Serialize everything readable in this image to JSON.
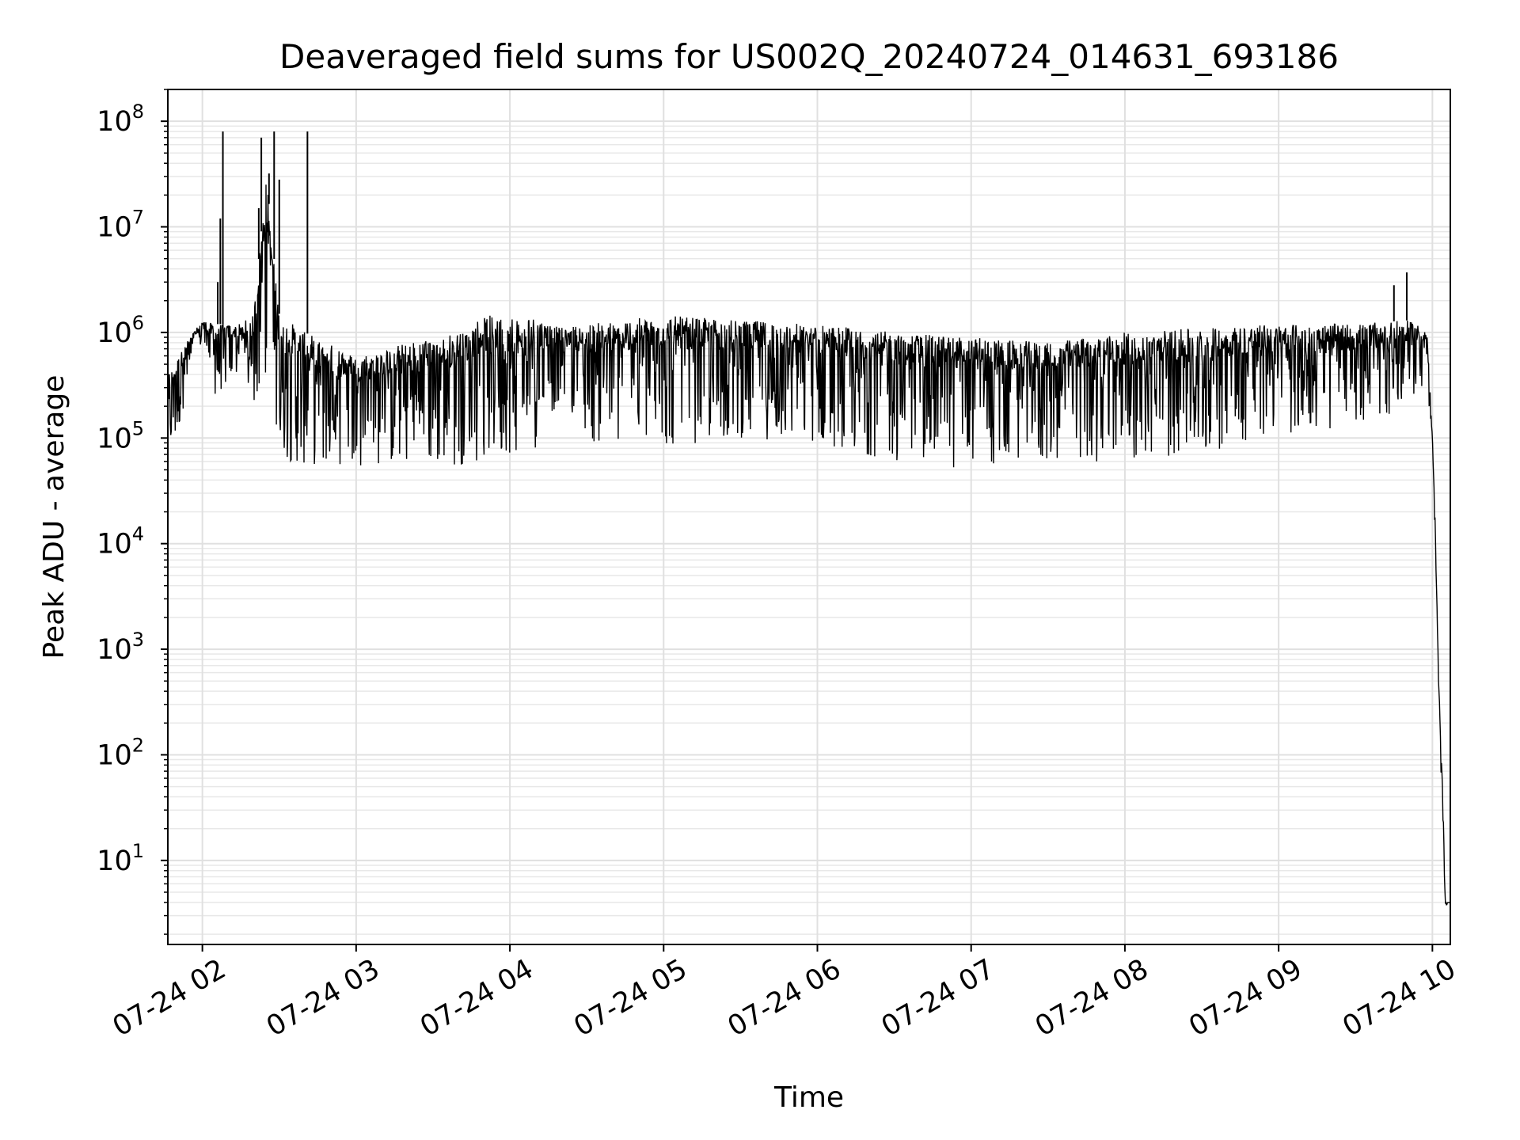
{
  "chart_data": {
    "type": "line",
    "title": "Deaveraged field sums for US002Q_20240724_014631_693186",
    "xlabel": "Time",
    "ylabel": "Peak ADU - average",
    "yscale": "log",
    "ylim": [
      1.6,
      200000000
    ],
    "xlim": [
      "2024-07-24 01:46:31",
      "2024-07-24 10:07:00"
    ],
    "grid": true,
    "x_ticks": [
      {
        "time": "2024-07-24 02:00",
        "label": "07-24 02"
      },
      {
        "time": "2024-07-24 03:00",
        "label": "07-24 03"
      },
      {
        "time": "2024-07-24 04:00",
        "label": "07-24 04"
      },
      {
        "time": "2024-07-24 05:00",
        "label": "07-24 05"
      },
      {
        "time": "2024-07-24 06:00",
        "label": "07-24 06"
      },
      {
        "time": "2024-07-24 07:00",
        "label": "07-24 07"
      },
      {
        "time": "2024-07-24 08:00",
        "label": "07-24 08"
      },
      {
        "time": "2024-07-24 09:00",
        "label": "07-24 09"
      },
      {
        "time": "2024-07-24 10:00",
        "label": "07-24 10"
      }
    ],
    "y_ticks": [
      {
        "value": 10,
        "base": "10",
        "exp": "1"
      },
      {
        "value": 100,
        "base": "10",
        "exp": "2"
      },
      {
        "value": 1000,
        "base": "10",
        "exp": "3"
      },
      {
        "value": 10000,
        "base": "10",
        "exp": "4"
      },
      {
        "value": 100000,
        "base": "10",
        "exp": "5"
      },
      {
        "value": 1000000,
        "base": "10",
        "exp": "6"
      },
      {
        "value": 10000000,
        "base": "10",
        "exp": "7"
      },
      {
        "value": 100000000,
        "base": "10",
        "exp": "8"
      }
    ],
    "series": [
      {
        "color": "#000000",
        "envelope": [
          {
            "time": "2024-07-24 01:46:31",
            "upper": 400000,
            "lower": 70000
          },
          {
            "time": "2024-07-24 01:50",
            "upper": 550000,
            "lower": 90000
          },
          {
            "time": "2024-07-24 01:55",
            "upper": 900000,
            "lower": 400000
          },
          {
            "time": "2024-07-24 02:00",
            "upper": 1300000,
            "lower": 800000
          },
          {
            "time": "2024-07-24 02:05",
            "upper": 1200000,
            "lower": 250000
          },
          {
            "time": "2024-07-24 02:15",
            "upper": 1200000,
            "lower": 400000
          },
          {
            "time": "2024-07-24 02:20",
            "upper": 1500000,
            "lower": 200000
          },
          {
            "time": "2024-07-24 02:25",
            "upper": 30000000,
            "lower": 300000
          },
          {
            "time": "2024-07-24 02:30",
            "upper": 1500000,
            "lower": 60000
          },
          {
            "time": "2024-07-24 02:40",
            "upper": 1000000,
            "lower": 55000
          },
          {
            "time": "2024-07-24 03:00",
            "upper": 600000,
            "lower": 55000
          },
          {
            "time": "2024-07-24 03:20",
            "upper": 800000,
            "lower": 55000
          },
          {
            "time": "2024-07-24 03:40",
            "upper": 1000000,
            "lower": 55000
          },
          {
            "time": "2024-07-24 03:50",
            "upper": 1450000,
            "lower": 60000
          },
          {
            "time": "2024-07-24 04:10",
            "upper": 1400000,
            "lower": 80000
          },
          {
            "time": "2024-07-24 04:20",
            "upper": 1100000,
            "lower": 250000
          },
          {
            "time": "2024-07-24 04:30",
            "upper": 1200000,
            "lower": 90000
          },
          {
            "time": "2024-07-24 05:00",
            "upper": 1450000,
            "lower": 80000
          },
          {
            "time": "2024-07-24 05:30",
            "upper": 1300000,
            "lower": 100000
          },
          {
            "time": "2024-07-24 06:00",
            "upper": 1200000,
            "lower": 90000
          },
          {
            "time": "2024-07-24 06:30",
            "upper": 1000000,
            "lower": 60000
          },
          {
            "time": "2024-07-24 07:00",
            "upper": 900000,
            "lower": 50000
          },
          {
            "time": "2024-07-24 07:30",
            "upper": 800000,
            "lower": 60000
          },
          {
            "time": "2024-07-24 08:00",
            "upper": 1000000,
            "lower": 60000
          },
          {
            "time": "2024-07-24 08:30",
            "upper": 1100000,
            "lower": 70000
          },
          {
            "time": "2024-07-24 09:00",
            "upper": 1200000,
            "lower": 110000
          },
          {
            "time": "2024-07-24 09:30",
            "upper": 1200000,
            "lower": 120000
          },
          {
            "time": "2024-07-24 09:50",
            "upper": 1300000,
            "lower": 200000
          },
          {
            "time": "2024-07-24 09:58",
            "upper": 1100000,
            "lower": 300000
          },
          {
            "time": "2024-07-24 10:00",
            "upper": 100000,
            "lower": 65000
          },
          {
            "time": "2024-07-24 10:01",
            "upper": 20000,
            "lower": 10000
          },
          {
            "time": "2024-07-24 10:02",
            "upper": 1500,
            "lower": 1000
          },
          {
            "time": "2024-07-24 10:03",
            "upper": 200,
            "lower": 100
          },
          {
            "time": "2024-07-24 10:04",
            "upper": 50,
            "lower": 30
          },
          {
            "time": "2024-07-24 10:05",
            "upper": 4,
            "lower": 3.8
          },
          {
            "time": "2024-07-24 10:07",
            "upper": 4,
            "lower": 3.8
          }
        ],
        "spikes": [
          {
            "time": "2024-07-24 02:06",
            "value": 3000000
          },
          {
            "time": "2024-07-24 02:07",
            "value": 12000000
          },
          {
            "time": "2024-07-24 02:08",
            "value": 80000000
          },
          {
            "time": "2024-07-24 02:22",
            "value": 15000000
          },
          {
            "time": "2024-07-24 02:23",
            "value": 70000000
          },
          {
            "time": "2024-07-24 02:25",
            "value": 30000000
          },
          {
            "time": "2024-07-24 02:26",
            "value": 32000000
          },
          {
            "time": "2024-07-24 02:28",
            "value": 80000000
          },
          {
            "time": "2024-07-24 02:30",
            "value": 28000000
          },
          {
            "time": "2024-07-24 02:41",
            "value": 80000000
          },
          {
            "time": "2024-07-24 09:45",
            "value": 2800000
          },
          {
            "time": "2024-07-24 09:50",
            "value": 3700000
          }
        ]
      }
    ]
  }
}
